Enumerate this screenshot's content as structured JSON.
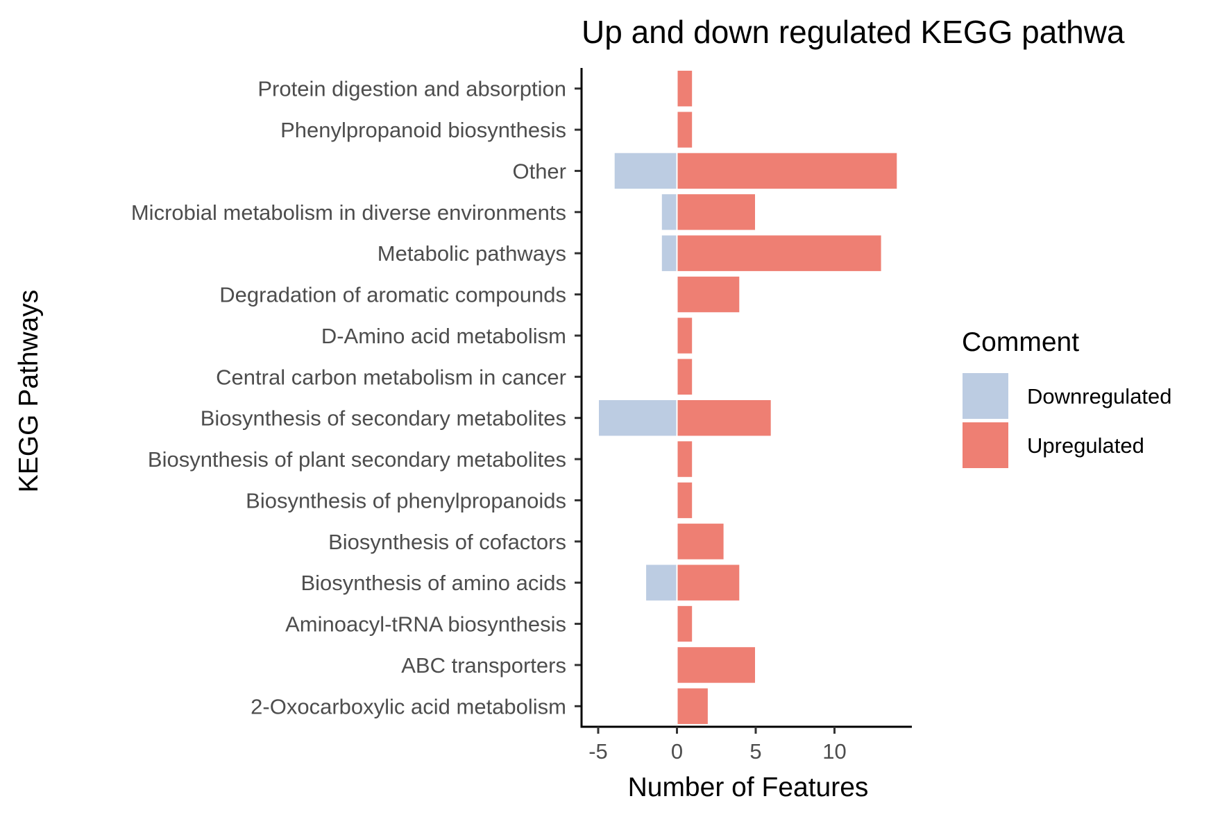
{
  "chart_data": {
    "type": "bar",
    "orientation": "horizontal",
    "stacked": "diverging",
    "title": "Up and down regulated KEGG pathwa",
    "xlabel": "Number of Features",
    "ylabel": "KEGG Pathways",
    "xlim": [
      -6,
      15
    ],
    "xticks": [
      "-5",
      "0",
      "5",
      "10"
    ],
    "xtick_values": [
      -5,
      0,
      5,
      10
    ],
    "categories": [
      "Protein digestion and absorption",
      "Phenylpropanoid biosynthesis",
      "Other",
      "Microbial metabolism in diverse environments",
      "Metabolic pathways",
      "Degradation of aromatic compounds",
      "D-Amino acid metabolism",
      "Central carbon metabolism in cancer",
      "Biosynthesis of secondary metabolites",
      "Biosynthesis of plant secondary metabolites",
      "Biosynthesis of phenylpropanoids",
      "Biosynthesis of cofactors",
      "Biosynthesis of amino acids",
      "Aminoacyl-tRNA biosynthesis",
      "ABC transporters",
      "2-Oxocarboxylic acid metabolism"
    ],
    "series": [
      {
        "name": "Downregulated",
        "color": "#bccce2",
        "values": [
          0,
          0,
          -4,
          -1,
          -1,
          0,
          0,
          0,
          -5,
          0,
          0,
          0,
          -2,
          0,
          0,
          0
        ]
      },
      {
        "name": "Upregulated",
        "color": "#ee7f73",
        "values": [
          1,
          1,
          14,
          5,
          13,
          4,
          1,
          1,
          6,
          1,
          1,
          3,
          4,
          1,
          5,
          2
        ]
      }
    ],
    "legend": {
      "title": "Comment",
      "position": "right"
    },
    "grid": false
  }
}
